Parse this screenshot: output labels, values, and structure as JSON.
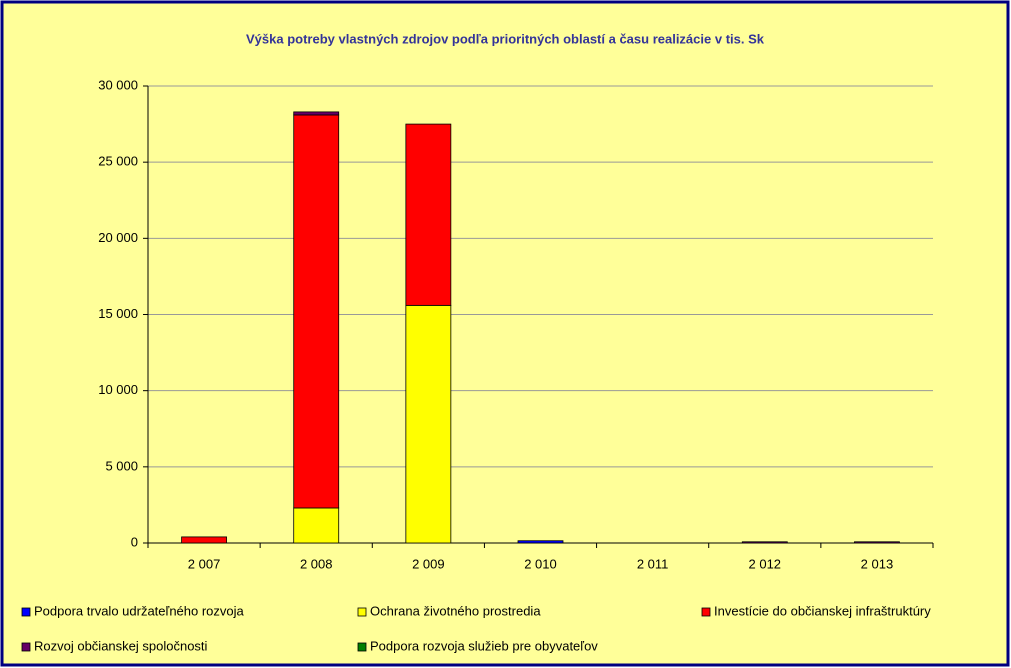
{
  "chart_data": {
    "type": "stacked_bar",
    "title": "Výška potreby vlastných zdrojov podľa prioritných oblastí a času realizácie v tis. Sk",
    "categories": [
      "2 007",
      "2 008",
      "2 009",
      "2 010",
      "2 011",
      "2 012",
      "2 013"
    ],
    "series": [
      {
        "name": "Podpora trvalo udržateľného rozvoja",
        "color": "#0000ff",
        "values": [
          0,
          0,
          0,
          150,
          0,
          0,
          0
        ]
      },
      {
        "name": "Ochrana životného prostredia",
        "color": "#ffff00",
        "values": [
          0,
          2300,
          15600,
          0,
          0,
          0,
          0
        ]
      },
      {
        "name": "Investície do občianskej infraštruktúry",
        "color": "#ff0000",
        "values": [
          400,
          25800,
          11900,
          0,
          0,
          0,
          0
        ]
      },
      {
        "name": "Rozvoj občianskej spoločnosti",
        "color": "#660066",
        "values": [
          0,
          200,
          0,
          0,
          0,
          80,
          80
        ]
      },
      {
        "name": "Podpora rozvoja služieb pre obyvateľov",
        "color": "#008000",
        "values": [
          0,
          0,
          0,
          0,
          0,
          0,
          0
        ]
      }
    ],
    "ylim": [
      0,
      30000
    ],
    "yticks": [
      {
        "value": 0,
        "label": "0"
      },
      {
        "value": 5000,
        "label": "5 000"
      },
      {
        "value": 10000,
        "label": "10 000"
      },
      {
        "value": 15000,
        "label": "15 000"
      },
      {
        "value": 20000,
        "label": "20 000"
      },
      {
        "value": 25000,
        "label": "25 000"
      },
      {
        "value": 30000,
        "label": "30 000"
      }
    ],
    "grid": true
  }
}
